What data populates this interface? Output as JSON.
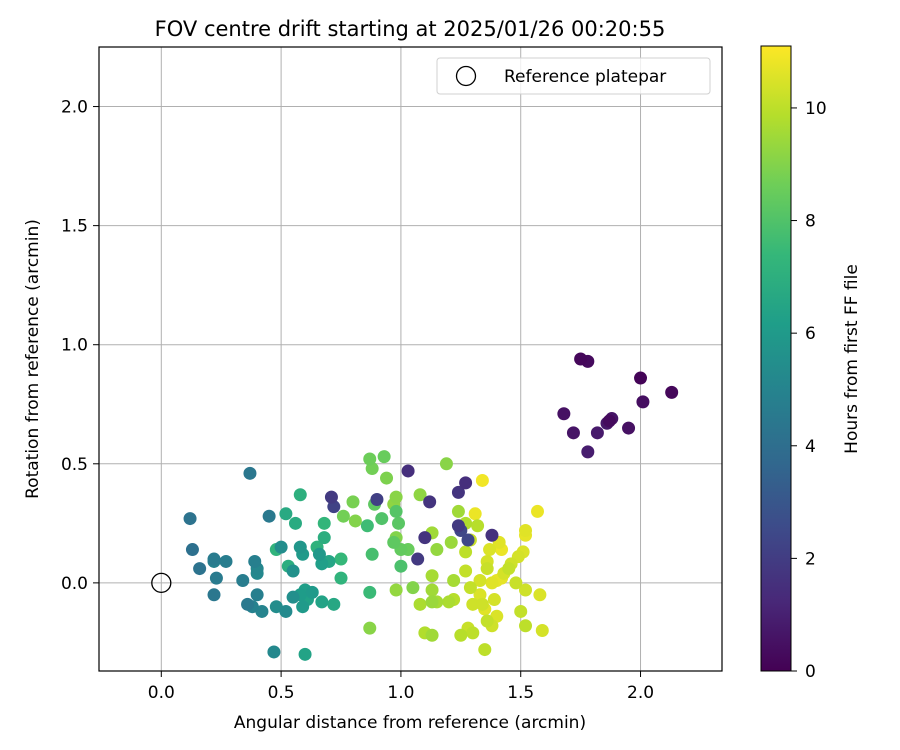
{
  "chart_data": {
    "type": "scatter",
    "title": "FOV centre drift starting at 2025/01/26 00:20:55",
    "xlabel": "Angular distance from reference (arcmin)",
    "ylabel": "Rotation from reference (arcmin)",
    "xlim": [
      -0.26,
      2.34
    ],
    "ylim": [
      -0.37,
      2.25
    ],
    "xticks": [
      0.0,
      0.5,
      1.0,
      1.5,
      2.0
    ],
    "xtick_labels": [
      "0.0",
      "0.5",
      "1.0",
      "1.5",
      "2.0"
    ],
    "yticks": [
      0.0,
      0.5,
      1.0,
      1.5,
      2.0
    ],
    "ytick_labels": [
      "0.0",
      "0.5",
      "1.0",
      "1.5",
      "2.0"
    ],
    "grid": true,
    "legend": {
      "placement": "top-right",
      "entries": [
        {
          "label": "Reference platepar",
          "marker": "open-circle"
        }
      ]
    },
    "reference_point": {
      "x": 0.0,
      "y": 0.0
    },
    "colorbar": {
      "label": "Hours from first FF file",
      "range": [
        0,
        11.1
      ],
      "colormap": "viridis",
      "ticks": [
        0,
        2,
        4,
        6,
        8,
        10
      ],
      "tick_labels": [
        "0",
        "2",
        "4",
        "6",
        "8",
        "10"
      ],
      "stops": [
        "#440154",
        "#482878",
        "#3e4989",
        "#31688e",
        "#26828e",
        "#1f9e89",
        "#35b779",
        "#6ece58",
        "#b5de2b",
        "#fde725"
      ]
    },
    "series": [
      {
        "points": [
          {
            "x": 1.75,
            "y": 0.94,
            "c": 0.2
          },
          {
            "x": 1.78,
            "y": 0.93,
            "c": 0.3
          },
          {
            "x": 2.0,
            "y": 0.86,
            "c": 0.1
          },
          {
            "x": 2.13,
            "y": 0.8,
            "c": 0.2
          },
          {
            "x": 2.01,
            "y": 0.76,
            "c": 0.4
          },
          {
            "x": 1.68,
            "y": 0.71,
            "c": 0.5
          },
          {
            "x": 1.87,
            "y": 0.68,
            "c": 0.3
          },
          {
            "x": 1.88,
            "y": 0.69,
            "c": 0.6
          },
          {
            "x": 1.86,
            "y": 0.67,
            "c": 0.7
          },
          {
            "x": 1.95,
            "y": 0.65,
            "c": 0.5
          },
          {
            "x": 1.72,
            "y": 0.63,
            "c": 0.6
          },
          {
            "x": 1.82,
            "y": 0.63,
            "c": 0.8
          },
          {
            "x": 1.78,
            "y": 0.55,
            "c": 0.9
          },
          {
            "x": 1.03,
            "y": 0.47,
            "c": 1.5
          },
          {
            "x": 1.27,
            "y": 0.42,
            "c": 1.5
          },
          {
            "x": 1.24,
            "y": 0.38,
            "c": 1.7
          },
          {
            "x": 0.71,
            "y": 0.36,
            "c": 1.9
          },
          {
            "x": 0.9,
            "y": 0.35,
            "c": 2.1
          },
          {
            "x": 1.12,
            "y": 0.34,
            "c": 1.7
          },
          {
            "x": 0.72,
            "y": 0.32,
            "c": 2.2
          },
          {
            "x": 1.24,
            "y": 0.24,
            "c": 1.9
          },
          {
            "x": 1.25,
            "y": 0.22,
            "c": 2.4
          },
          {
            "x": 1.38,
            "y": 0.2,
            "c": 1.6
          },
          {
            "x": 1.1,
            "y": 0.19,
            "c": 1.7
          },
          {
            "x": 1.28,
            "y": 0.18,
            "c": 2.4
          },
          {
            "x": 1.07,
            "y": 0.1,
            "c": 1.9
          },
          {
            "x": 0.37,
            "y": 0.46,
            "c": 4.4
          },
          {
            "x": 0.45,
            "y": 0.28,
            "c": 4.5
          },
          {
            "x": 0.12,
            "y": 0.27,
            "c": 4.2
          },
          {
            "x": 0.13,
            "y": 0.14,
            "c": 4.1
          },
          {
            "x": 0.22,
            "y": 0.1,
            "c": 4.6
          },
          {
            "x": 0.27,
            "y": 0.09,
            "c": 4.7
          },
          {
            "x": 0.39,
            "y": 0.09,
            "c": 4.8
          },
          {
            "x": 0.22,
            "y": 0.09,
            "c": 4.9
          },
          {
            "x": 0.16,
            "y": 0.06,
            "c": 4.2
          },
          {
            "x": 0.4,
            "y": 0.06,
            "c": 5.1
          },
          {
            "x": 0.4,
            "y": 0.04,
            "c": 5.2
          },
          {
            "x": 0.23,
            "y": 0.02,
            "c": 4.6
          },
          {
            "x": 0.34,
            "y": 0.01,
            "c": 4.7
          },
          {
            "x": 0.22,
            "y": -0.05,
            "c": 4.4
          },
          {
            "x": 0.4,
            "y": -0.05,
            "c": 4.8
          },
          {
            "x": 0.36,
            "y": -0.09,
            "c": 4.5
          },
          {
            "x": 0.38,
            "y": -0.1,
            "c": 4.9
          },
          {
            "x": 0.42,
            "y": -0.12,
            "c": 5.0
          },
          {
            "x": 0.48,
            "y": -0.1,
            "c": 5.4
          },
          {
            "x": 0.52,
            "y": -0.12,
            "c": 5.3
          },
          {
            "x": 0.47,
            "y": -0.29,
            "c": 5.2
          },
          {
            "x": 0.5,
            "y": 0.15,
            "c": 5.4
          },
          {
            "x": 0.55,
            "y": 0.05,
            "c": 5.6
          },
          {
            "x": 0.55,
            "y": -0.06,
            "c": 5.5
          },
          {
            "x": 0.58,
            "y": 0.15,
            "c": 5.8
          },
          {
            "x": 0.59,
            "y": 0.12,
            "c": 6.0
          },
          {
            "x": 0.58,
            "y": -0.05,
            "c": 6.1
          },
          {
            "x": 0.6,
            "y": -0.03,
            "c": 6.2
          },
          {
            "x": 0.59,
            "y": -0.1,
            "c": 6.0
          },
          {
            "x": 0.61,
            "y": -0.07,
            "c": 6.3
          },
          {
            "x": 0.63,
            "y": -0.04,
            "c": 6.0
          },
          {
            "x": 0.67,
            "y": -0.08,
            "c": 6.4
          },
          {
            "x": 0.66,
            "y": 0.12,
            "c": 5.9
          },
          {
            "x": 0.67,
            "y": 0.08,
            "c": 6.2
          },
          {
            "x": 0.7,
            "y": 0.09,
            "c": 6.5
          },
          {
            "x": 0.72,
            "y": -0.09,
            "c": 6.6
          },
          {
            "x": 0.6,
            "y": -0.3,
            "c": 6.4
          },
          {
            "x": 0.52,
            "y": 0.29,
            "c": 6.7
          },
          {
            "x": 0.56,
            "y": 0.25,
            "c": 6.8
          },
          {
            "x": 0.58,
            "y": 0.37,
            "c": 7.0
          },
          {
            "x": 0.48,
            "y": 0.14,
            "c": 7.2
          },
          {
            "x": 0.53,
            "y": 0.07,
            "c": 6.9
          },
          {
            "x": 0.65,
            "y": 0.15,
            "c": 7.1
          },
          {
            "x": 0.68,
            "y": 0.19,
            "c": 6.9
          },
          {
            "x": 0.68,
            "y": 0.25,
            "c": 7.3
          },
          {
            "x": 0.75,
            "y": 0.1,
            "c": 7.4
          },
          {
            "x": 0.75,
            "y": 0.02,
            "c": 7.2
          },
          {
            "x": 0.87,
            "y": -0.04,
            "c": 7.5
          },
          {
            "x": 0.86,
            "y": 0.24,
            "c": 7.6
          },
          {
            "x": 0.88,
            "y": 0.12,
            "c": 7.8
          },
          {
            "x": 1.0,
            "y": 0.07,
            "c": 7.9
          },
          {
            "x": 0.92,
            "y": 0.27,
            "c": 8.0
          },
          {
            "x": 0.98,
            "y": 0.3,
            "c": 8.1
          },
          {
            "x": 0.99,
            "y": 0.25,
            "c": 8.2
          },
          {
            "x": 0.97,
            "y": 0.17,
            "c": 8.3
          },
          {
            "x": 1.0,
            "y": 0.14,
            "c": 8.4
          },
          {
            "x": 1.03,
            "y": 0.14,
            "c": 8.5
          },
          {
            "x": 0.89,
            "y": 0.33,
            "c": 8.3
          },
          {
            "x": 0.93,
            "y": 0.53,
            "c": 8.5
          },
          {
            "x": 0.87,
            "y": 0.52,
            "c": 8.6
          },
          {
            "x": 0.88,
            "y": 0.48,
            "c": 8.7
          },
          {
            "x": 0.94,
            "y": 0.44,
            "c": 8.9
          },
          {
            "x": 0.76,
            "y": 0.28,
            "c": 8.7
          },
          {
            "x": 0.8,
            "y": 0.34,
            "c": 8.8
          },
          {
            "x": 0.81,
            "y": 0.26,
            "c": 9.0
          },
          {
            "x": 0.98,
            "y": 0.36,
            "c": 9.1
          },
          {
            "x": 0.97,
            "y": 0.33,
            "c": 9.2
          },
          {
            "x": 0.98,
            "y": 0.19,
            "c": 9.0
          },
          {
            "x": 0.98,
            "y": -0.03,
            "c": 9.3
          },
          {
            "x": 0.87,
            "y": -0.19,
            "c": 9.1
          },
          {
            "x": 1.05,
            "y": -0.02,
            "c": 9.0
          },
          {
            "x": 1.08,
            "y": 0.37,
            "c": 9.2
          },
          {
            "x": 1.19,
            "y": 0.5,
            "c": 9.1
          },
          {
            "x": 1.13,
            "y": 0.21,
            "c": 9.5
          },
          {
            "x": 1.15,
            "y": 0.14,
            "c": 9.3
          },
          {
            "x": 1.21,
            "y": 0.17,
            "c": 9.4
          },
          {
            "x": 1.13,
            "y": 0.03,
            "c": 9.6
          },
          {
            "x": 1.13,
            "y": -0.03,
            "c": 9.5
          },
          {
            "x": 1.08,
            "y": -0.09,
            "c": 9.7
          },
          {
            "x": 1.13,
            "y": -0.08,
            "c": 9.4
          },
          {
            "x": 1.15,
            "y": -0.08,
            "c": 9.6
          },
          {
            "x": 1.1,
            "y": -0.21,
            "c": 9.8
          },
          {
            "x": 1.13,
            "y": -0.22,
            "c": 9.5
          },
          {
            "x": 1.2,
            "y": -0.08,
            "c": 9.7
          },
          {
            "x": 1.22,
            "y": -0.07,
            "c": 9.9
          },
          {
            "x": 1.22,
            "y": 0.01,
            "c": 9.6
          },
          {
            "x": 1.24,
            "y": 0.3,
            "c": 9.5
          },
          {
            "x": 1.27,
            "y": 0.25,
            "c": 9.8
          },
          {
            "x": 1.25,
            "y": -0.22,
            "c": 9.9
          },
          {
            "x": 1.27,
            "y": 0.13,
            "c": 10.0
          },
          {
            "x": 1.27,
            "y": 0.05,
            "c": 10.1
          },
          {
            "x": 1.29,
            "y": 0.18,
            "c": 10.2
          },
          {
            "x": 1.29,
            "y": -0.02,
            "c": 10.1
          },
          {
            "x": 1.28,
            "y": -0.19,
            "c": 10.2
          },
          {
            "x": 1.3,
            "y": -0.09,
            "c": 10.3
          },
          {
            "x": 1.3,
            "y": -0.21,
            "c": 10.0
          },
          {
            "x": 1.32,
            "y": 0.24,
            "c": 9.9
          },
          {
            "x": 1.31,
            "y": 0.29,
            "c": 10.8
          },
          {
            "x": 1.34,
            "y": 0.43,
            "c": 10.9
          },
          {
            "x": 1.33,
            "y": 0.01,
            "c": 10.4
          },
          {
            "x": 1.33,
            "y": -0.05,
            "c": 10.5
          },
          {
            "x": 1.34,
            "y": -0.09,
            "c": 10.3
          },
          {
            "x": 1.35,
            "y": -0.11,
            "c": 10.6
          },
          {
            "x": 1.36,
            "y": 0.09,
            "c": 10.4
          },
          {
            "x": 1.36,
            "y": 0.06,
            "c": 10.2
          },
          {
            "x": 1.36,
            "y": -0.16,
            "c": 10.1
          },
          {
            "x": 1.35,
            "y": -0.28,
            "c": 10.0
          },
          {
            "x": 1.37,
            "y": 0.14,
            "c": 10.5
          },
          {
            "x": 1.38,
            "y": 0.0,
            "c": 10.6
          },
          {
            "x": 1.38,
            "y": -0.18,
            "c": 10.3
          },
          {
            "x": 1.39,
            "y": -0.07,
            "c": 10.4
          },
          {
            "x": 1.4,
            "y": 0.01,
            "c": 10.7
          },
          {
            "x": 1.4,
            "y": -0.14,
            "c": 10.5
          },
          {
            "x": 1.41,
            "y": 0.17,
            "c": 10.6
          },
          {
            "x": 1.42,
            "y": 0.14,
            "c": 10.8
          },
          {
            "x": 1.42,
            "y": 0.02,
            "c": 10.7
          },
          {
            "x": 1.43,
            "y": 0.04,
            "c": 10.4
          },
          {
            "x": 1.45,
            "y": 0.06,
            "c": 10.1
          },
          {
            "x": 1.46,
            "y": 0.08,
            "c": 10.3
          },
          {
            "x": 1.48,
            "y": 0.0,
            "c": 10.2
          },
          {
            "x": 1.49,
            "y": 0.11,
            "c": 10.4
          },
          {
            "x": 1.5,
            "y": -0.12,
            "c": 10.1
          },
          {
            "x": 1.51,
            "y": 0.13,
            "c": 10.5
          },
          {
            "x": 1.52,
            "y": 0.22,
            "c": 10.6
          },
          {
            "x": 1.52,
            "y": 0.2,
            "c": 10.7
          },
          {
            "x": 1.52,
            "y": -0.03,
            "c": 10.3
          },
          {
            "x": 1.52,
            "y": -0.18,
            "c": 10.0
          },
          {
            "x": 1.57,
            "y": 0.3,
            "c": 10.8
          },
          {
            "x": 1.58,
            "y": -0.05,
            "c": 10.5
          },
          {
            "x": 1.59,
            "y": -0.2,
            "c": 10.4
          }
        ]
      }
    ]
  }
}
